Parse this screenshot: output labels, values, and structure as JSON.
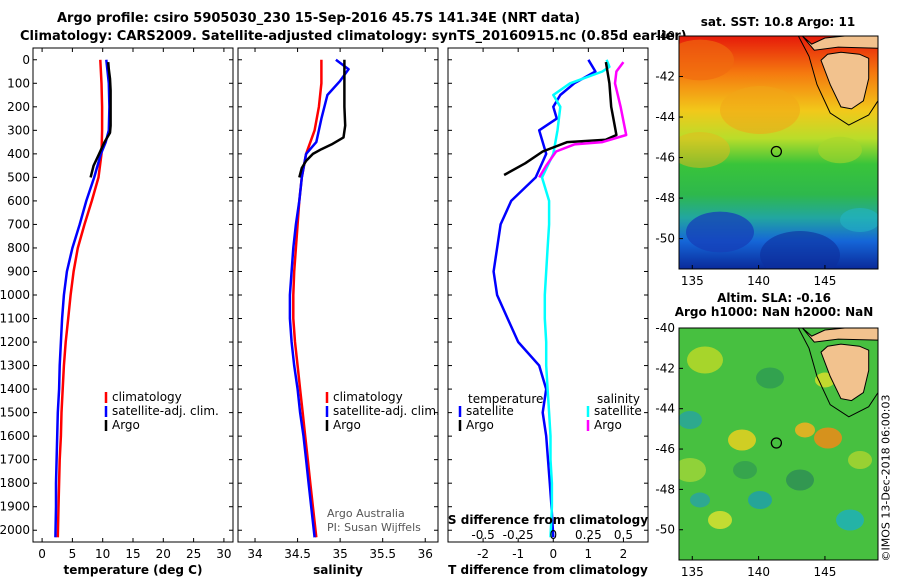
{
  "header": {
    "line1": "Argo profile: csiro 5905030_230 15-Sep-2016 45.7S 141.34E (NRT data)",
    "line2": "Climatology: CARS2009. Satellite-adjusted climatology: synTS_20160915.nc (0.85d earlier)"
  },
  "colors": {
    "climatology": "#ff0000",
    "satellite": "#0000ff",
    "argo": "#000000",
    "satellite_salinity": "#00ffff",
    "argo_salinity_diff": "#ff00ff"
  },
  "depth_axis": {
    "ticks": [
      0,
      100,
      200,
      300,
      400,
      500,
      600,
      700,
      800,
      900,
      1000,
      1100,
      1200,
      1300,
      1400,
      1500,
      1600,
      1700,
      1800,
      1900,
      2000
    ]
  },
  "chart_data": [
    {
      "id": "temperature",
      "type": "line",
      "xlabel": "temperature (deg C)",
      "xlim": [
        -1.5,
        31.5
      ],
      "ylim": [
        2050,
        -50
      ],
      "xticks": [
        0,
        5,
        10,
        15,
        20,
        25,
        30
      ],
      "legend": [
        "climatology",
        "satellite-adj. clim.",
        "Argo"
      ],
      "series": [
        {
          "name": "climatology",
          "color": "#ff0000",
          "points": [
            [
              9.6,
              0
            ],
            [
              9.8,
              100
            ],
            [
              9.9,
              200
            ],
            [
              9.9,
              300
            ],
            [
              9.8,
              400
            ],
            [
              9.3,
              500
            ],
            [
              8.2,
              600
            ],
            [
              7.0,
              700
            ],
            [
              5.9,
              800
            ],
            [
              5.2,
              900
            ],
            [
              4.7,
              1000
            ],
            [
              4.3,
              1100
            ],
            [
              3.9,
              1200
            ],
            [
              3.6,
              1300
            ],
            [
              3.4,
              1400
            ],
            [
              3.2,
              1500
            ],
            [
              3.1,
              1600
            ],
            [
              2.9,
              1700
            ],
            [
              2.8,
              1800
            ],
            [
              2.7,
              1900
            ],
            [
              2.6,
              2030
            ]
          ]
        },
        {
          "name": "satellite-adj. clim.",
          "color": "#0000ff",
          "points": [
            [
              10.6,
              0
            ],
            [
              11.0,
              100
            ],
            [
              11.1,
              200
            ],
            [
              11.0,
              300
            ],
            [
              10.5,
              350
            ],
            [
              9.7,
              400
            ],
            [
              8.6,
              500
            ],
            [
              7.3,
              600
            ],
            [
              6.2,
              700
            ],
            [
              5.0,
              800
            ],
            [
              4.1,
              900
            ],
            [
              3.6,
              1000
            ],
            [
              3.3,
              1100
            ],
            [
              3.1,
              1200
            ],
            [
              2.9,
              1300
            ],
            [
              2.8,
              1400
            ],
            [
              2.6,
              1500
            ],
            [
              2.5,
              1600
            ],
            [
              2.4,
              1700
            ],
            [
              2.3,
              1800
            ],
            [
              2.3,
              1900
            ],
            [
              2.2,
              2030
            ]
          ]
        },
        {
          "name": "Argo",
          "color": "#000000",
          "points": [
            [
              10.9,
              10
            ],
            [
              11.0,
              40
            ],
            [
              11.2,
              80
            ],
            [
              11.3,
              130
            ],
            [
              11.3,
              180
            ],
            [
              11.3,
              230
            ],
            [
              11.3,
              280
            ],
            [
              11.2,
              310
            ],
            [
              10.3,
              350
            ],
            [
              9.4,
              400
            ],
            [
              8.5,
              450
            ],
            [
              8.0,
              500
            ]
          ]
        }
      ]
    },
    {
      "id": "salinity",
      "type": "line",
      "xlabel": "salinity",
      "xlim": [
        33.8,
        36.15
      ],
      "ylim": [
        2050,
        -50
      ],
      "xticks": [
        34,
        34.5,
        35,
        35.5,
        36
      ],
      "xticklabels": [
        "34",
        "34.5",
        "35",
        "35.5",
        "36"
      ],
      "legend": [
        "climatology",
        "satellite-adj. clim.",
        "Argo"
      ],
      "annotations": [
        "Argo Australia",
        "PI: Susan Wijffels"
      ],
      "series": [
        {
          "name": "climatology",
          "color": "#ff0000",
          "points": [
            [
              34.78,
              0
            ],
            [
              34.78,
              100
            ],
            [
              34.75,
              200
            ],
            [
              34.7,
              300
            ],
            [
              34.6,
              400
            ],
            [
              34.55,
              500
            ],
            [
              34.52,
              600
            ],
            [
              34.5,
              700
            ],
            [
              34.48,
              800
            ],
            [
              34.46,
              900
            ],
            [
              34.45,
              1000
            ],
            [
              34.45,
              1100
            ],
            [
              34.47,
              1200
            ],
            [
              34.5,
              1300
            ],
            [
              34.53,
              1400
            ],
            [
              34.56,
              1500
            ],
            [
              34.59,
              1600
            ],
            [
              34.62,
              1700
            ],
            [
              34.65,
              1800
            ],
            [
              34.68,
              1900
            ],
            [
              34.72,
              2030
            ]
          ]
        },
        {
          "name": "satellite-adj. clim.",
          "color": "#0000ff",
          "points": [
            [
              34.95,
              0
            ],
            [
              35.1,
              40
            ],
            [
              35.0,
              90
            ],
            [
              34.85,
              150
            ],
            [
              34.78,
              250
            ],
            [
              34.72,
              350
            ],
            [
              34.6,
              400
            ],
            [
              34.55,
              500
            ],
            [
              34.52,
              600
            ],
            [
              34.48,
              700
            ],
            [
              34.45,
              800
            ],
            [
              34.43,
              900
            ],
            [
              34.41,
              1000
            ],
            [
              34.41,
              1100
            ],
            [
              34.43,
              1200
            ],
            [
              34.46,
              1300
            ],
            [
              34.5,
              1400
            ],
            [
              34.53,
              1500
            ],
            [
              34.57,
              1600
            ],
            [
              34.6,
              1700
            ],
            [
              34.63,
              1800
            ],
            [
              34.66,
              1900
            ],
            [
              34.7,
              2030
            ]
          ]
        },
        {
          "name": "Argo",
          "color": "#000000",
          "points": [
            [
              35.05,
              0
            ],
            [
              35.05,
              100
            ],
            [
              35.05,
              200
            ],
            [
              35.06,
              280
            ],
            [
              35.04,
              330
            ],
            [
              34.9,
              360
            ],
            [
              34.78,
              380
            ],
            [
              34.68,
              400
            ],
            [
              34.6,
              430
            ],
            [
              34.55,
              460
            ],
            [
              34.52,
              500
            ]
          ]
        }
      ]
    },
    {
      "id": "difference",
      "type": "line",
      "xlabel": "T difference from climatology",
      "xlabel2": "S difference from climatology",
      "xlim": [
        -3,
        2.7
      ],
      "ylim": [
        2050,
        -50
      ],
      "xticks": [
        -2,
        -1,
        0,
        1,
        2
      ],
      "xticks2": [
        -0.5,
        -0.25,
        0,
        0.25,
        0.5
      ],
      "xticklabels2": [
        "-0.5",
        "-0.25",
        "0",
        "0.25",
        "0.5"
      ],
      "legend_temperature_title": "temperature",
      "legend_salinity_title": "salinity",
      "legend_temperature": [
        "satellite",
        "Argo"
      ],
      "legend_salinity": [
        "satellite",
        "Argo"
      ],
      "series": [
        {
          "name": "satellite",
          "variable": "temperature",
          "color": "#0000ff",
          "points": [
            [
              1.0,
              0
            ],
            [
              1.2,
              50
            ],
            [
              0.6,
              100
            ],
            [
              0.2,
              150
            ],
            [
              0.0,
              200
            ],
            [
              0.1,
              250
            ],
            [
              -0.4,
              300
            ],
            [
              -0.2,
              400
            ],
            [
              -0.5,
              500
            ],
            [
              -1.2,
              600
            ],
            [
              -1.5,
              700
            ],
            [
              -1.6,
              800
            ],
            [
              -1.7,
              900
            ],
            [
              -1.6,
              1000
            ],
            [
              -1.3,
              1100
            ],
            [
              -1.0,
              1200
            ],
            [
              -0.4,
              1300
            ],
            [
              -0.2,
              1400
            ],
            [
              -0.3,
              1500
            ],
            [
              -0.2,
              1600
            ],
            [
              -0.15,
              1700
            ],
            [
              -0.1,
              1800
            ],
            [
              -0.05,
              1900
            ],
            [
              0.0,
              2030
            ]
          ]
        },
        {
          "name": "satellite",
          "variable": "salinity",
          "color": "#00ffff",
          "points": [
            [
              0.38,
              0
            ],
            [
              0.4,
              30
            ],
            [
              0.35,
              50
            ],
            [
              0.12,
              100
            ],
            [
              0.0,
              150
            ],
            [
              0.05,
              200
            ],
            [
              0.03,
              300
            ],
            [
              0.0,
              400
            ],
            [
              -0.08,
              500
            ],
            [
              -0.03,
              600
            ],
            [
              -0.03,
              700
            ],
            [
              -0.04,
              800
            ],
            [
              -0.05,
              900
            ],
            [
              -0.06,
              1000
            ],
            [
              -0.06,
              1100
            ],
            [
              -0.05,
              1200
            ],
            [
              -0.05,
              1300
            ],
            [
              -0.04,
              1400
            ],
            [
              -0.03,
              1500
            ],
            [
              -0.02,
              1600
            ],
            [
              -0.02,
              1700
            ],
            [
              -0.01,
              1800
            ],
            [
              -0.01,
              1900
            ],
            [
              -0.02,
              2030
            ]
          ]
        },
        {
          "name": "Argo",
          "variable": "temperature",
          "color": "#000000",
          "points": [
            [
              1.5,
              10
            ],
            [
              1.6,
              100
            ],
            [
              1.65,
              200
            ],
            [
              1.75,
              280
            ],
            [
              1.8,
              320
            ],
            [
              1.5,
              340
            ],
            [
              0.4,
              350
            ],
            [
              -0.3,
              390
            ],
            [
              -0.8,
              440
            ],
            [
              -1.4,
              490
            ]
          ]
        },
        {
          "name": "Argo",
          "variable": "salinity",
          "color": "#ff00ff",
          "points": [
            [
              0.5,
              10
            ],
            [
              0.45,
              50
            ],
            [
              0.44,
              100
            ],
            [
              0.46,
              150
            ],
            [
              0.48,
              200
            ],
            [
              0.5,
              260
            ],
            [
              0.52,
              320
            ],
            [
              0.35,
              350
            ],
            [
              0.15,
              360
            ],
            [
              0.02,
              390
            ],
            [
              -0.05,
              450
            ],
            [
              -0.1,
              500
            ]
          ]
        }
      ]
    },
    {
      "id": "sst-map",
      "type": "heatmap",
      "title": "sat. SST: 10.8 Argo: 11",
      "xlim": [
        134,
        149
      ],
      "ylim": [
        -51.5,
        -40
      ],
      "xticks": [
        135,
        140,
        145
      ],
      "yticks": [
        -40,
        -42,
        -44,
        -46,
        -48,
        -50
      ],
      "marker": {
        "lon": 141.34,
        "lat": -45.7
      }
    },
    {
      "id": "sla-map",
      "type": "heatmap",
      "title1": "Altim. SLA: -0.16",
      "title2": "Argo h1000: NaN h2000: NaN",
      "xlim": [
        134,
        149
      ],
      "ylim": [
        -51.5,
        -40
      ],
      "xticks": [
        135,
        140,
        145
      ],
      "yticks": [
        -40,
        -42,
        -44,
        -46,
        -48,
        -50
      ],
      "marker": {
        "lon": 141.34,
        "lat": -45.7
      }
    }
  ],
  "credit": "©IMOS 13-Dec-2018 06:00:03"
}
